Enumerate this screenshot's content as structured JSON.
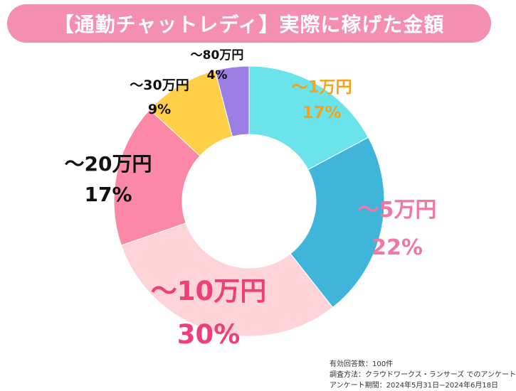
{
  "title": "【通勤チャットレディ】実際に稼げた金額",
  "chart_data": {
    "type": "pie",
    "variant": "donut",
    "slices": [
      {
        "label": "〜1万円",
        "percent": "17%",
        "value": 17,
        "color": "#6ae4ea",
        "label_color": "#f5a31a"
      },
      {
        "label": "〜5万円",
        "percent": "22%",
        "value": 22,
        "color": "#3eb5d9",
        "label_color": "#f078a8"
      },
      {
        "label": "〜10万円",
        "percent": "30%",
        "value": 30,
        "color": "#ffd4d9",
        "label_color": "#ee3f78"
      },
      {
        "label": "〜20万円",
        "percent": "17%",
        "value": 17,
        "color": "#fb88a6",
        "label_color": "#111111"
      },
      {
        "label": "〜30万円",
        "percent": "9%",
        "value": 9,
        "color": "#ffcf48",
        "label_color": "#111111"
      },
      {
        "label": "〜80万円",
        "percent": "4%",
        "value": 4,
        "color": "#9b7fe4",
        "label_color": "#111111"
      }
    ]
  },
  "notes": {
    "respondents": "有効回答数：100件",
    "method": "調査方法：クラウドワークス・ランサーズ でのアンケート",
    "period": "アンケート期間：2024年5月31日−2024年6月18日"
  }
}
